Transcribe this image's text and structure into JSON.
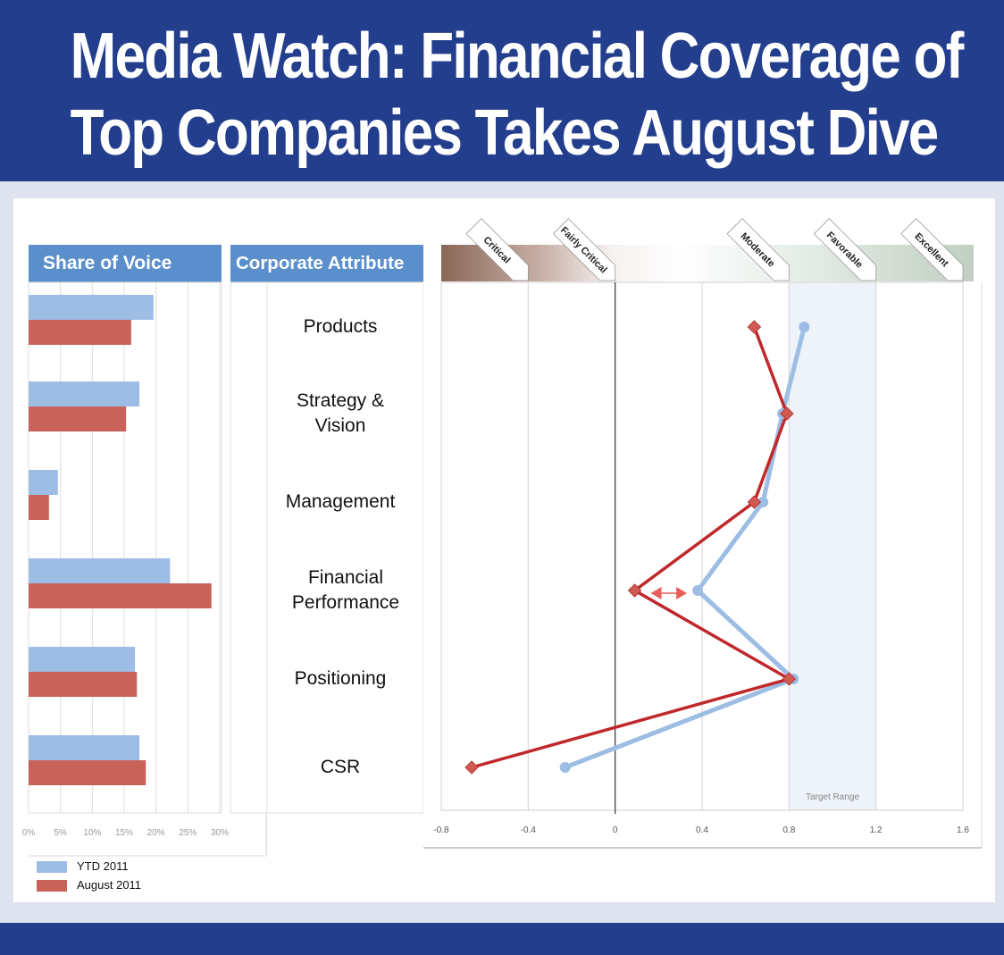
{
  "header": {
    "title_line1": "Media Watch: Financial Coverage of",
    "title_line2": "Top Companies Takes August Dive"
  },
  "colors": {
    "banner": "#233e8d",
    "header_blue": "#5b8fcc",
    "ytd": "#9dbde4",
    "august_bar": "#c9635a",
    "august_line": "#c0282b",
    "target_range": "#eef3f9"
  },
  "legend": {
    "items": [
      {
        "label": "YTD 2011",
        "color": "#9dbde4"
      },
      {
        "label": "August 2011",
        "color": "#c9635a"
      }
    ]
  },
  "chart_data": [
    {
      "type": "bar",
      "orientation": "horizontal",
      "title": "Share of Voice",
      "categories": [
        "Products",
        "Strategy & Vision",
        "Management",
        "Financial Performance",
        "Positioning",
        "CSR"
      ],
      "series": [
        {
          "name": "YTD 2011",
          "values": [
            19.6,
            17.4,
            4.6,
            22.2,
            16.7,
            17.4
          ]
        },
        {
          "name": "August 2011",
          "values": [
            16.1,
            15.3,
            3.2,
            28.7,
            17.0,
            18.4
          ]
        }
      ],
      "xlim": [
        0,
        30
      ],
      "xticks": [
        "0%",
        "5%",
        "10%",
        "15%",
        "20%",
        "25%",
        "30%"
      ],
      "unit": "%",
      "grid": true,
      "legend_position": "bottom-left"
    },
    {
      "type": "line",
      "orientation": "vertical-profile",
      "title": "Corporate Attribute",
      "categories": [
        "Products",
        "Strategy & Vision",
        "Management",
        "Financial Performance",
        "Positioning",
        "CSR"
      ],
      "category_labels": [
        [
          "Products"
        ],
        [
          "Strategy &",
          "Vision"
        ],
        [
          "Management"
        ],
        [
          "Financial",
          "Performance"
        ],
        [
          "Positioning"
        ],
        [
          "CSR"
        ]
      ],
      "series": [
        {
          "name": "YTD 2011",
          "marker": "circle",
          "values": [
            0.87,
            0.77,
            0.68,
            0.38,
            0.82,
            -0.23
          ]
        },
        {
          "name": "August 2011",
          "marker": "diamond",
          "values": [
            0.64,
            0.79,
            0.64,
            0.09,
            0.8,
            -0.66
          ]
        }
      ],
      "xlim": [
        -0.8,
        1.6
      ],
      "xticks": [
        "-0.8",
        "-0.4",
        "0",
        "0.4",
        "0.8",
        "1.2",
        "1.6"
      ],
      "xtick_values": [
        -0.8,
        -0.4,
        0,
        0.4,
        0.8,
        1.2,
        1.6
      ],
      "scale_labels": [
        {
          "label": "Critical",
          "value": -0.4
        },
        {
          "label": "Fairly Critical",
          "value": 0
        },
        {
          "label": "Moderate",
          "value": 0.8
        },
        {
          "label": "Favorable",
          "value": 1.2
        },
        {
          "label": "Excellent",
          "value": 1.6
        }
      ],
      "target_range": {
        "label": "Target Range",
        "from": 0.8,
        "to": 1.2
      },
      "annotation": {
        "type": "double-arrow",
        "category": "Financial Performance",
        "from": 0.09,
        "to": 0.38
      },
      "grid": true
    }
  ]
}
